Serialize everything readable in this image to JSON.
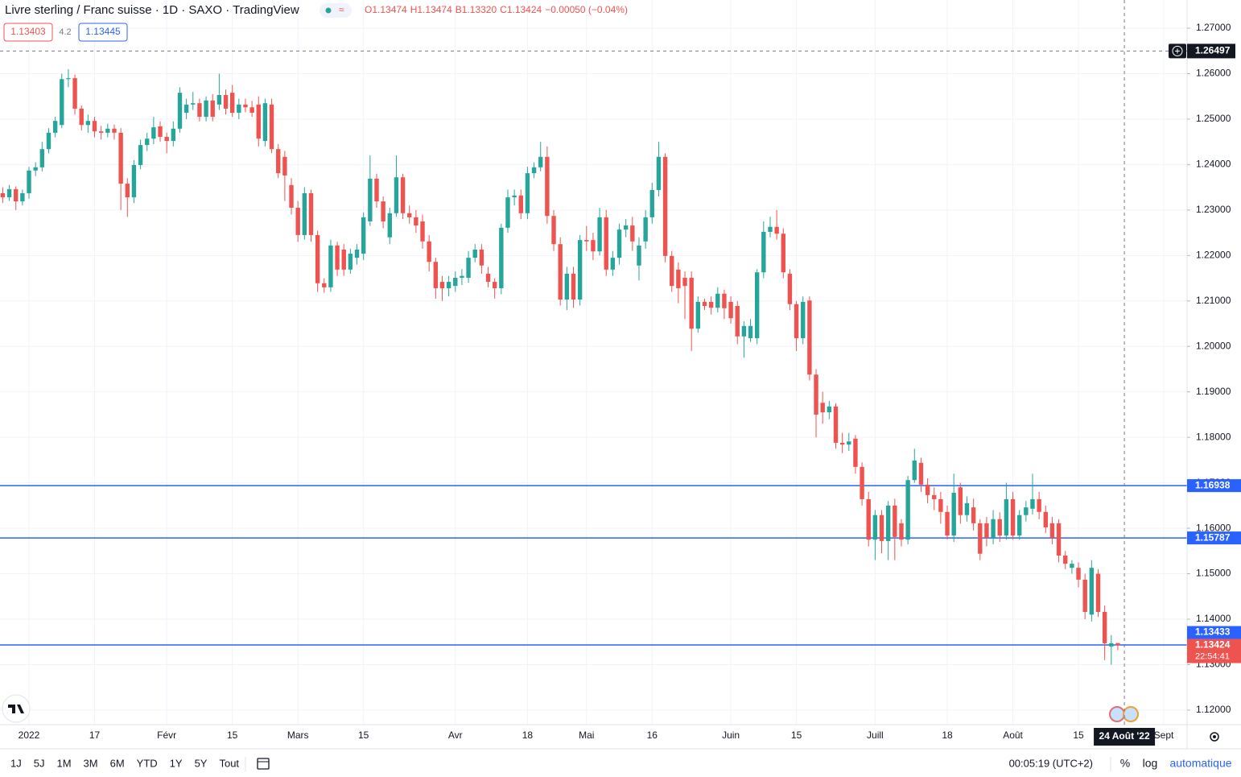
{
  "header": {
    "title": "Livre sterling / Franc suisse · 1D · SAXO · TradingView",
    "ohlc": [
      "O1.13474",
      "H1.13474",
      "B1.13320",
      "C1.13424"
    ],
    "change": "−0.00050 (−0.04%)",
    "bid": 1.13403,
    "spread": 4.2,
    "ask": 1.13445
  },
  "chart_data": {
    "type": "candlestick",
    "up_color": "#26a69a",
    "down_color": "#ef5350",
    "grid": true,
    "ylim": [
      1.1168,
      1.2762
    ],
    "yticks": [
      {
        "value": 1.12,
        "label": "1.12000"
      },
      {
        "value": 1.13,
        "label": "1.13000"
      },
      {
        "value": 1.14,
        "label": "1.14000"
      },
      {
        "value": 1.15,
        "label": "1.15000"
      },
      {
        "value": 1.16,
        "label": "1.16000"
      },
      {
        "value": 1.17,
        "label": "1.17000"
      },
      {
        "value": 1.18,
        "label": "1.18000"
      },
      {
        "value": 1.19,
        "label": "1.19000"
      },
      {
        "value": 1.2,
        "label": "1.20000"
      },
      {
        "value": 1.21,
        "label": "1.21000"
      },
      {
        "value": 1.22,
        "label": "1.22000"
      },
      {
        "value": 1.23,
        "label": "1.23000"
      },
      {
        "value": 1.24,
        "label": "1.24000"
      },
      {
        "value": 1.25,
        "label": "1.25000"
      },
      {
        "value": 1.26,
        "label": "1.26000"
      },
      {
        "value": 1.27,
        "label": "1.27000"
      }
    ],
    "xlim": [
      -0.42,
      180.56
    ],
    "xticks": [
      {
        "value": 4,
        "label": "2022"
      },
      {
        "value": 14,
        "label": "17"
      },
      {
        "value": 25,
        "label": "Févr"
      },
      {
        "value": 35,
        "label": "15"
      },
      {
        "value": 45,
        "label": "Mars"
      },
      {
        "value": 55,
        "label": "15"
      },
      {
        "value": 69,
        "label": "Avr"
      },
      {
        "value": 80,
        "label": "18"
      },
      {
        "value": 89,
        "label": "Mai"
      },
      {
        "value": 99,
        "label": "16"
      },
      {
        "value": 111,
        "label": "Juin"
      },
      {
        "value": 121,
        "label": "15"
      },
      {
        "value": 133,
        "label": "Juill"
      },
      {
        "value": 144,
        "label": "18"
      },
      {
        "value": 154,
        "label": "Août"
      },
      {
        "value": 164,
        "label": "15"
      },
      {
        "value": 177,
        "label": "Sept"
      }
    ],
    "open": [
      1.2337,
      1.2328,
      1.2346,
      1.2319,
      1.2337,
      1.2387,
      1.2394,
      1.2434,
      1.247,
      1.2487,
      1.2588,
      1.259,
      1.2523,
      1.2487,
      1.2496,
      1.2473,
      1.247,
      1.2479,
      1.247,
      1.2358,
      1.2328,
      1.2399,
      1.2443,
      1.2457,
      1.2484,
      1.2461,
      1.2452,
      1.2479,
      1.2514,
      1.2532,
      1.2535,
      1.2505,
      1.2541,
      1.2532,
      1.2553,
      1.2558,
      1.2514,
      1.2532,
      1.2526,
      1.2532,
      1.2452,
      1.2532,
      1.2434,
      1.2417,
      1.2355,
      1.2305,
      1.2245,
      1.2337,
      1.2245,
      1.2139,
      1.213,
      1.2222,
      1.2213,
      1.2169,
      1.2195,
      1.2204,
      1.2275,
      1.2369,
      1.2319,
      1.224,
      1.2293,
      1.2372,
      1.2293,
      1.2284,
      1.2275,
      1.2231,
      1.2186,
      1.2142,
      1.2128,
      1.2133,
      1.2151,
      1.2151,
      1.2195,
      1.2213,
      1.216,
      1.2142,
      1.2128,
      1.2261,
      1.2328,
      1.2332,
      1.2293,
      1.2381,
      1.2394,
      1.2417,
      1.2287,
      1.2225,
      1.2103,
      1.216,
      1.2103,
      1.2234,
      1.2234,
      1.2209,
      1.2284,
      1.2169,
      1.2195,
      1.2257,
      1.2266,
      1.2178,
      1.2231,
      1.2284,
      1.2344,
      1.2417,
      1.2199,
      1.2169,
      1.2151,
      1.2151,
      1.2039,
      1.2098,
      1.2098,
      1.2085,
      1.2116,
      1.2098,
      1.2089,
      1.2022,
      1.2018,
      1.2018,
      1.2163,
      1.2252,
      1.2263,
      1.2248,
      1.216,
      1.2093,
      1.2018,
      1.2101,
      1.1938,
      1.1876,
      1.1855,
      1.1868,
      1.1788,
      1.1784,
      1.1797,
      1.1735,
      1.1664,
      1.1575,
      1.1629,
      1.1572,
      1.165,
      1.1611,
      1.1575,
      1.1706,
      1.1744,
      1.1696,
      1.1673,
      1.1664,
      1.1636,
      1.1584,
      1.169,
      1.1629,
      1.1646,
      1.1611,
      1.1611,
      1.1579,
      1.162,
      1.1584,
      1.1664,
      1.1584,
      1.1629,
      1.1643,
      1.1664,
      1.1636,
      1.1611,
      1.1611,
      1.154,
      1.1513,
      1.1513,
      1.1487,
      1.141,
      1.15,
      1.1416,
      1.134,
      1.13474
    ],
    "high": [
      1.235,
      1.2355,
      1.2352,
      1.2345,
      1.2395,
      1.2405,
      1.245,
      1.248,
      1.2505,
      1.26,
      1.261,
      1.2598,
      1.253,
      1.251,
      1.2505,
      1.2485,
      1.249,
      1.2488,
      1.248,
      1.237,
      1.241,
      1.2455,
      1.247,
      1.2505,
      1.2495,
      1.247,
      1.2495,
      1.257,
      1.2545,
      1.256,
      1.2545,
      1.255,
      1.2555,
      1.26,
      1.2565,
      1.2575,
      1.2545,
      1.2545,
      1.254,
      1.255,
      1.2545,
      1.2545,
      1.2445,
      1.243,
      1.237,
      1.232,
      1.235,
      1.2345,
      1.2255,
      1.215,
      1.2235,
      1.223,
      1.2225,
      1.2215,
      1.2225,
      1.2295,
      1.242,
      1.238,
      1.233,
      1.2305,
      1.242,
      1.238,
      1.231,
      1.23,
      1.229,
      1.2245,
      1.2195,
      1.2155,
      1.2155,
      1.2165,
      1.217,
      1.221,
      1.2225,
      1.2225,
      1.2175,
      1.215,
      1.227,
      1.2345,
      1.2345,
      1.2345,
      1.2395,
      1.2405,
      1.245,
      1.244,
      1.23,
      1.224,
      1.2175,
      1.2175,
      1.2245,
      1.2265,
      1.225,
      1.2305,
      1.23,
      1.221,
      1.227,
      1.228,
      1.2285,
      1.224,
      1.23,
      1.236,
      1.245,
      1.2425,
      1.221,
      1.2185,
      1.2165,
      1.2165,
      1.211,
      1.2105,
      1.211,
      1.213,
      1.2125,
      1.211,
      1.21,
      1.2055,
      1.206,
      1.217,
      1.2275,
      1.2285,
      1.23,
      1.226,
      1.217,
      1.21,
      1.211,
      1.211,
      1.195,
      1.19,
      1.188,
      1.1875,
      1.181,
      1.181,
      1.1805,
      1.1745,
      1.168,
      1.164,
      1.164,
      1.166,
      1.1665,
      1.162,
      1.1715,
      1.1775,
      1.1755,
      1.171,
      1.169,
      1.168,
      1.165,
      1.172,
      1.17,
      1.167,
      1.1665,
      1.162,
      1.1625,
      1.164,
      1.1635,
      1.17,
      1.168,
      1.164,
      1.166,
      1.172,
      1.168,
      1.165,
      1.1625,
      1.162,
      1.155,
      1.153,
      1.1525,
      1.15,
      1.153,
      1.151,
      1.143,
      1.1365,
      1.13474
    ],
    "low": [
      1.2315,
      1.232,
      1.23,
      1.231,
      1.2325,
      1.2375,
      1.2385,
      1.2425,
      1.246,
      1.248,
      1.257,
      1.251,
      1.2475,
      1.247,
      1.246,
      1.2455,
      1.246,
      1.2455,
      1.23,
      1.2285,
      1.2315,
      1.239,
      1.243,
      1.2445,
      1.245,
      1.2425,
      1.244,
      1.247,
      1.25,
      1.252,
      1.2495,
      1.2495,
      1.2495,
      1.252,
      1.251,
      1.2505,
      1.25,
      1.2515,
      1.2505,
      1.244,
      1.244,
      1.2425,
      1.237,
      1.232,
      1.229,
      1.223,
      1.2235,
      1.223,
      1.212,
      1.2118,
      1.212,
      1.2155,
      1.2155,
      1.216,
      1.218,
      1.219,
      1.2265,
      1.2305,
      1.226,
      1.2225,
      1.2285,
      1.228,
      1.227,
      1.225,
      1.2215,
      1.2165,
      1.2105,
      1.21,
      1.211,
      1.212,
      1.2135,
      1.214,
      1.2185,
      1.216,
      1.213,
      1.2105,
      1.2115,
      1.225,
      1.231,
      1.228,
      1.228,
      1.237,
      1.2385,
      1.227,
      1.221,
      1.209,
      1.208,
      1.2085,
      1.209,
      1.221,
      1.219,
      1.22,
      1.2155,
      1.2155,
      1.218,
      1.224,
      1.221,
      1.2145,
      1.2215,
      1.227,
      1.233,
      1.2185,
      1.212,
      1.2095,
      1.206,
      1.199,
      1.203,
      1.208,
      1.207,
      1.2075,
      1.206,
      1.205,
      1.2005,
      1.1975,
      1.201,
      1.2005,
      1.215,
      1.224,
      1.2235,
      1.215,
      1.208,
      1.199,
      1.2005,
      1.1925,
      1.18,
      1.183,
      1.184,
      1.1775,
      1.1765,
      1.177,
      1.172,
      1.165,
      1.156,
      1.153,
      1.1545,
      1.153,
      1.153,
      1.156,
      1.1565,
      1.17,
      1.168,
      1.1655,
      1.164,
      1.161,
      1.1575,
      1.157,
      1.161,
      1.1615,
      1.1595,
      1.153,
      1.156,
      1.1565,
      1.157,
      1.1575,
      1.1575,
      1.1575,
      1.1615,
      1.163,
      1.162,
      1.159,
      1.1565,
      1.1525,
      1.151,
      1.15,
      1.147,
      1.14,
      1.1395,
      1.1405,
      1.131,
      1.13,
      1.1332
    ],
    "close": [
      1.2328,
      1.2346,
      1.2319,
      1.2337,
      1.2387,
      1.2394,
      1.2434,
      1.247,
      1.2496,
      1.2588,
      1.259,
      1.2523,
      1.2487,
      1.2496,
      1.2473,
      1.247,
      1.2479,
      1.247,
      1.2358,
      1.2328,
      1.2399,
      1.2443,
      1.2457,
      1.2482,
      1.2461,
      1.2452,
      1.2479,
      1.2558,
      1.2532,
      1.2535,
      1.2505,
      1.2541,
      1.2505,
      1.2553,
      1.2523,
      1.2514,
      1.2532,
      1.2526,
      1.2514,
      1.2457,
      1.2535,
      1.2434,
      1.2381,
      1.2376,
      1.2305,
      1.2245,
      1.2337,
      1.2245,
      1.2139,
      1.213,
      1.2222,
      1.2169,
      1.2169,
      1.2204,
      1.2213,
      1.2284,
      1.2369,
      1.2319,
      1.2275,
      1.2293,
      1.2372,
      1.2293,
      1.2284,
      1.2266,
      1.2231,
      1.2186,
      1.2128,
      1.2128,
      1.2142,
      1.2151,
      1.2155,
      1.2195,
      1.2213,
      1.2178,
      1.2142,
      1.2128,
      1.2261,
      1.2328,
      1.2332,
      1.2293,
      1.2381,
      1.2394,
      1.2417,
      1.2287,
      1.2225,
      1.2103,
      1.216,
      1.2103,
      1.2234,
      1.2231,
      1.2209,
      1.2284,
      1.2169,
      1.2195,
      1.2257,
      1.2266,
      1.2231,
      1.2222,
      1.2284,
      1.2344,
      1.2417,
      1.2199,
      1.2133,
      1.2128,
      1.2133,
      1.2039,
      1.2098,
      1.2089,
      1.2085,
      1.2116,
      1.2084,
      1.2062,
      1.2022,
      1.2045,
      1.2045,
      1.2163,
      1.2252,
      1.2263,
      1.2248,
      1.2163,
      1.2093,
      1.2018,
      1.2098,
      1.1938,
      1.185,
      1.1855,
      1.1868,
      1.1788,
      1.1784,
      1.1791,
      1.1735,
      1.1664,
      1.1575,
      1.1629,
      1.1572,
      1.165,
      1.1581,
      1.1575,
      1.1706,
      1.1749,
      1.1696,
      1.1673,
      1.1664,
      1.1636,
      1.1584,
      1.1678,
      1.1629,
      1.1655,
      1.1611,
      1.1544,
      1.1579,
      1.162,
      1.1584,
      1.1664,
      1.1584,
      1.1629,
      1.1646,
      1.1664,
      1.1636,
      1.1602,
      1.1579,
      1.154,
      1.1522,
      1.1522,
      1.1487,
      1.1416,
      1.1513,
      1.1416,
      1.1347,
      1.1347,
      1.13424
    ],
    "hlines": {
      "color": "#2962ff",
      "values": [
        1.16938,
        1.15787,
        1.13433
      ]
    },
    "last_price": 1.13424,
    "countdown": "22:54:41",
    "crosshair": {
      "price": 1.26497,
      "index": 171,
      "date": "24 Août '22"
    }
  },
  "toolbar": {
    "ranges": [
      "1J",
      "5J",
      "1M",
      "3M",
      "6M",
      "YTD",
      "1Y",
      "5Y",
      "Tout"
    ],
    "time": "00:05:19 (UTC+2)",
    "options": [
      "%",
      "log",
      "automatique"
    ]
  }
}
